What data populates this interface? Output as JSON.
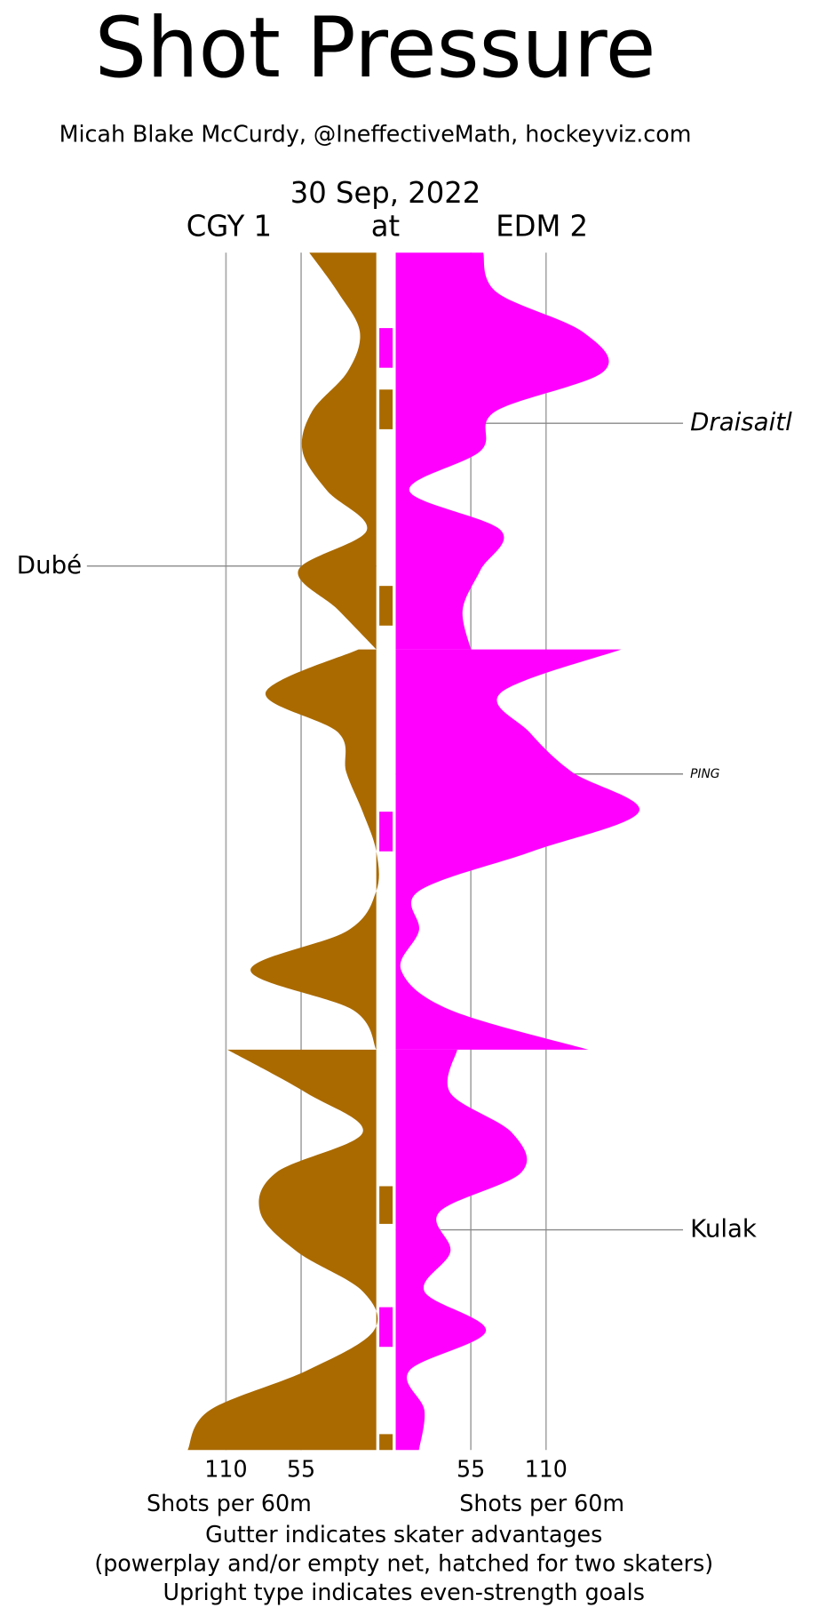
{
  "chart_data": {
    "type": "mirrored-area",
    "title": "Shot Pressure",
    "subtitle": "Micah Blake McCurdy, @IneffectiveMath, hockeyviz.com",
    "date": "30 Sep, 2022",
    "at": "at",
    "teams": [
      {
        "name": "CGY 1",
        "color": "#aa6a00"
      },
      {
        "name": "EDM 2",
        "color": "#ff00ff"
      }
    ],
    "xlabel": "Shots per 60m",
    "xticks": [
      55,
      110
    ],
    "periods": [
      {
        "x": [
          0,
          2,
          4,
          6,
          8,
          10,
          12,
          14,
          16,
          18,
          20
        ],
        "series": [
          {
            "values": [
              49,
              28,
              12,
              21,
              47,
              54,
              36,
              7,
              57,
              28,
              0
            ]
          },
          {
            "values": [
              64,
              74,
              137,
              152,
              73,
              62,
              10,
              77,
              62,
              49,
              55
            ]
          }
        ]
      },
      {
        "x": [
          20,
          22,
          24,
          26,
          28,
          30,
          32,
          34,
          36,
          38,
          40
        ],
        "series": [
          {
            "values": [
              13,
              81,
              28,
              22,
              10,
              0,
              0,
              21,
              92,
              17,
              0
            ]
          },
          {
            "values": [
              165,
              77,
              98,
              129,
              178,
              100,
              17,
              17,
              4,
              40,
              141
            ]
          }
        ]
      },
      {
        "x": [
          40,
          42,
          44,
          46,
          48,
          50,
          52,
          54,
          56,
          58,
          60
        ],
        "series": [
          {
            "values": [
              109,
              51,
              10,
              73,
              85,
              58,
              10,
              2,
              51,
              122,
              138
            ]
          },
          {
            "values": [
              45,
              40,
              85,
              92,
              32,
              40,
              21,
              66,
              10,
              21,
              17
            ]
          }
        ]
      }
    ],
    "gutter": [
      {
        "start": 3.8,
        "end": 5.8,
        "team": 1
      },
      {
        "start": 6.9,
        "end": 8.9,
        "team": 0
      },
      {
        "start": 16.8,
        "end": 18.8,
        "team": 0
      },
      {
        "start": 28,
        "end": 30,
        "team": 1
      },
      {
        "start": 46.7,
        "end": 48.6,
        "team": 0
      },
      {
        "start": 52.8,
        "end": 54.8,
        "team": 1
      },
      {
        "start": 59.2,
        "end": 60,
        "team": 0
      }
    ],
    "goals": [
      {
        "label": "Draisaitl",
        "time": 8.6,
        "side": "right",
        "italic": true,
        "minor": false
      },
      {
        "label": "Dubé",
        "time": 15.8,
        "side": "left",
        "italic": false,
        "minor": false
      },
      {
        "label": "PING",
        "time": 26.1,
        "side": "right",
        "italic": true,
        "minor": true
      },
      {
        "label": "Kulak",
        "time": 48.9,
        "side": "right",
        "italic": false,
        "minor": false
      }
    ],
    "notes": [
      "Gutter indicates skater advantages",
      "(powerplay and/or empty net, hatched for two skaters)",
      "Upright type indicates even-strength goals"
    ]
  }
}
